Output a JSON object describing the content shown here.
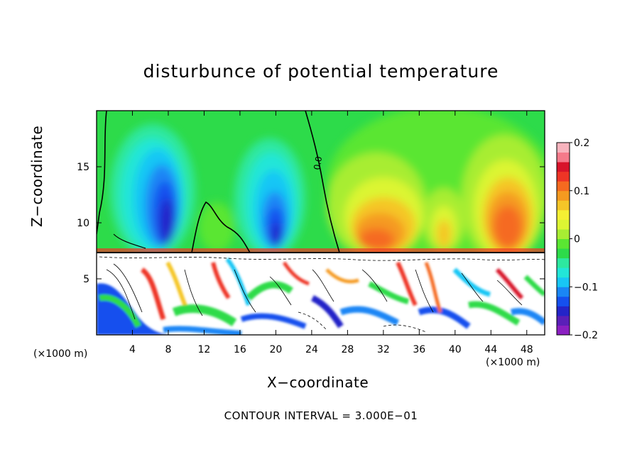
{
  "chart_data": {
    "type": "heatmap",
    "title": "disturbunce of potential temperature",
    "xlabel": "X−coordinate",
    "ylabel": "Z−coordinate",
    "x_unit_left": "(×1000 m)",
    "x_unit_right": "(×1000 m)",
    "xlim": [
      0,
      50
    ],
    "ylim": [
      0,
      20
    ],
    "x_ticks": [
      4,
      8,
      12,
      16,
      20,
      24,
      28,
      32,
      36,
      40,
      44,
      48
    ],
    "x_tick_labels": [
      "4",
      "8",
      "12",
      "16",
      "20",
      "24",
      "28",
      "32",
      "36",
      "40",
      "44",
      "48"
    ],
    "y_ticks": [
      5,
      10,
      15
    ],
    "y_tick_labels": [
      "5",
      "10",
      "15"
    ],
    "colorbar": {
      "range": [
        -0.2,
        0.2
      ],
      "ticks": [
        0.2,
        0.1,
        0,
        -0.1,
        -0.2
      ],
      "tick_labels": [
        "0.2",
        "0.1",
        "0",
        "−0.1",
        "−0.2"
      ],
      "colors": [
        "#8a1fc1",
        "#5a1fb8",
        "#2424c8",
        "#1550ee",
        "#1a86f5",
        "#18c6f5",
        "#22e6d8",
        "#2de8a0",
        "#2ddb4a",
        "#5ae632",
        "#a8ed33",
        "#dcf533",
        "#f5f033",
        "#f5c628",
        "#f59a20",
        "#f56a20",
        "#ee3526",
        "#d8142a",
        "#f57a8a",
        "#f8b4be"
      ]
    },
    "contour_labels": [
      "0.0"
    ],
    "contour_interval_text": "CONTOUR INTERVAL = 3.000E−01"
  }
}
